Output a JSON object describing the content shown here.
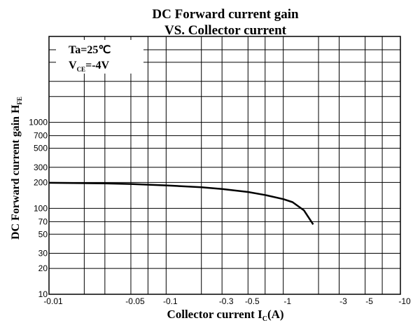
{
  "chart_data": {
    "type": "line",
    "title": [
      "DC Forward current gain",
      "VS. Collector current"
    ],
    "x_label": [
      "Collector current I",
      "C",
      "(A)"
    ],
    "y_label": [
      "DC Forward current gain H",
      "FE"
    ],
    "annotation": {
      "ta": "Ta=25℃",
      "vce": [
        "V",
        "CE",
        "=-4V"
      ]
    },
    "xscale": "log",
    "yscale": "log",
    "xlim": [
      -0.01,
      -10
    ],
    "ylim": [
      10,
      10000
    ],
    "xticks": [
      -0.01,
      -0.05,
      -0.1,
      -0.3,
      -0.5,
      -1,
      -3,
      -5,
      -10
    ],
    "x_minor_grid": [
      -0.02,
      -0.03,
      -0.07,
      -0.2,
      -0.7,
      -2,
      -7
    ],
    "yticks": [
      10,
      20,
      30,
      50,
      70,
      100,
      200,
      300,
      500,
      700,
      1000
    ],
    "y_minor_grid": [
      2000,
      3000,
      5000,
      7000
    ],
    "grid": true,
    "series": [
      {
        "color": "#000000",
        "x": [
          -0.01,
          -0.03,
          -0.05,
          -0.1,
          -0.2,
          -0.3,
          -0.5,
          -0.7,
          -1,
          -1.2,
          -1.5,
          -1.8
        ],
        "values": [
          198,
          195,
          192,
          185,
          176,
          168,
          155,
          143,
          128,
          118,
          95,
          65
        ]
      }
    ]
  }
}
